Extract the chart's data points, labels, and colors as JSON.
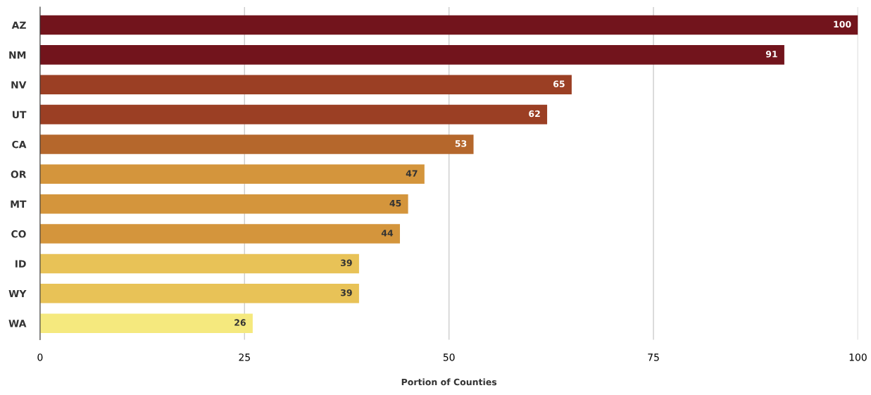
{
  "chart_data": {
    "type": "bar",
    "orientation": "horizontal",
    "xlabel": "Portion of Counties",
    "categories": [
      "AZ",
      "NM",
      "NV",
      "UT",
      "CA",
      "OR",
      "MT",
      "CO",
      "ID",
      "WY",
      "WA"
    ],
    "values": [
      100,
      91,
      65,
      62,
      53,
      47,
      45,
      44,
      39,
      39,
      26
    ],
    "colors": [
      "#72141c",
      "#72141c",
      "#9b3f24",
      "#9b3f24",
      "#b5672c",
      "#d4953c",
      "#d4953c",
      "#d4953c",
      "#e8c257",
      "#e8c257",
      "#f5e97e"
    ],
    "xlim": [
      0,
      100
    ],
    "xticks": [
      0,
      25,
      50,
      75,
      100
    ],
    "grid": "x",
    "data_labels": true
  }
}
